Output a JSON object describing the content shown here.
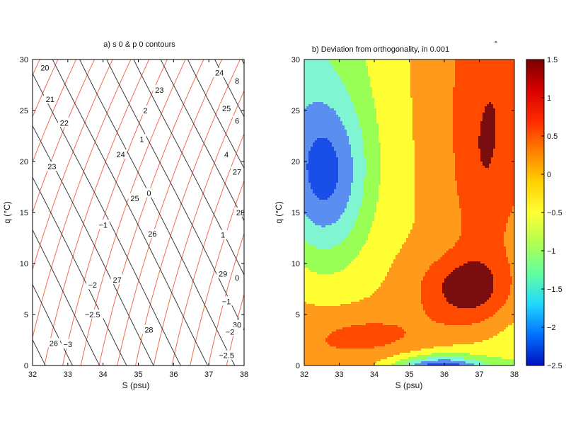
{
  "chart_data": [
    {
      "type": "line",
      "title": "a) s 0 & p 0 contours",
      "xlabel": "S (psu)",
      "ylabel": "q (°C)",
      "xlim": [
        32,
        38
      ],
      "ylim": [
        0,
        30
      ],
      "xticks": [
        "32",
        "33",
        "34",
        "35",
        "36",
        "37",
        "38"
      ],
      "yticks": [
        "0",
        "5",
        "10",
        "15",
        "20",
        "25",
        "30"
      ],
      "colors": {
        "sigma_contours": "#f26b50",
        "pi_contours": "#3b3b3b"
      },
      "sigma_contour_labels": [
        {
          "text": "20",
          "x": 32.35,
          "y": 29.2
        },
        {
          "text": "21",
          "x": 32.5,
          "y": 26.1
        },
        {
          "text": "22",
          "x": 32.9,
          "y": 23.8
        },
        {
          "text": "23",
          "x": 32.55,
          "y": 19.5
        },
        {
          "text": "23",
          "x": 35.6,
          "y": 27.0
        },
        {
          "text": "24",
          "x": 34.5,
          "y": 20.7
        },
        {
          "text": "24",
          "x": 37.3,
          "y": 28.7
        },
        {
          "text": "25",
          "x": 34.9,
          "y": 16.4
        },
        {
          "text": "25",
          "x": 37.5,
          "y": 25.2
        },
        {
          "text": "26",
          "x": 35.4,
          "y": 12.9
        },
        {
          "text": "27",
          "x": 34.4,
          "y": 8.4
        },
        {
          "text": "27",
          "x": 37.8,
          "y": 19.0
        },
        {
          "text": "28",
          "x": 35.3,
          "y": 3.5
        },
        {
          "text": "28",
          "x": 37.9,
          "y": 15.0
        },
        {
          "text": "29",
          "x": 37.4,
          "y": 9.0
        },
        {
          "text": "30",
          "x": 37.8,
          "y": 4.0
        },
        {
          "text": "26",
          "x": 32.6,
          "y": 2.2
        }
      ],
      "pi_contour_labels": [
        {
          "text": "8",
          "x": 37.8,
          "y": 27.9
        },
        {
          "text": "6",
          "x": 37.8,
          "y": 24.0
        },
        {
          "text": "4",
          "x": 37.5,
          "y": 20.7
        },
        {
          "text": "2",
          "x": 35.2,
          "y": 25.0
        },
        {
          "text": "1",
          "x": 35.1,
          "y": 22.2
        },
        {
          "text": "0",
          "x": 35.3,
          "y": 16.9
        },
        {
          "text": "1",
          "x": 37.4,
          "y": 12.8
        },
        {
          "text": "0",
          "x": 37.8,
          "y": 8.6
        },
        {
          "text": "−1",
          "x": 34.0,
          "y": 13.8
        },
        {
          "text": "−1",
          "x": 37.5,
          "y": 6.3
        },
        {
          "text": "−2",
          "x": 33.7,
          "y": 7.9
        },
        {
          "text": "−2",
          "x": 37.6,
          "y": 3.3
        },
        {
          "text": "−2.5",
          "x": 33.7,
          "y": 5.0
        },
        {
          "text": "−2.5",
          "x": 37.5,
          "y": 1.0
        },
        {
          "text": "−3",
          "x": 33.0,
          "y": 2.1
        }
      ]
    },
    {
      "type": "heatmap",
      "title": "b) Deviation from orthogonality, in 0.001",
      "title_unit": "°",
      "xlabel": "S (psu)",
      "ylabel": "q (°C)",
      "xlim": [
        32,
        38
      ],
      "ylim": [
        0,
        30
      ],
      "xticks": [
        "32",
        "33",
        "34",
        "35",
        "36",
        "37",
        "38"
      ],
      "yticks": [
        "0",
        "5",
        "10",
        "15",
        "20",
        "25",
        "30"
      ],
      "colorbar": {
        "range": [
          -2.5,
          1.5
        ],
        "ticks": [
          "1.5",
          "1",
          "0.5",
          "0",
          "−0.5",
          "−1",
          "−1.5",
          "−2",
          "−2.5"
        ],
        "tick_values": [
          1.5,
          1,
          0.5,
          0,
          -0.5,
          -1,
          -1.5,
          -2,
          -2.5
        ]
      },
      "contour_levels": [
        -2.25,
        -1.75,
        -1.25,
        -0.75,
        -0.25,
        0.25,
        0.75,
        1.25
      ],
      "fill_colors": {
        "lt_-2.25": "#1020c8",
        "-2.25_-1.75": "#1a4ee8",
        "-1.75_-1.25": "#5a8ef0",
        "-1.25_-0.75": "#7ff5d2",
        "-0.75_-0.25": "#9aff55",
        "-0.25_0.25": "#ffff33",
        "0.25_0.75": "#ff9a1a",
        "0.75_1.25": "#ff4a00",
        "gt_1.25": "#7a0e0e"
      },
      "colorbar_gradient": [
        "#7a0000",
        "#d70000",
        "#ff2a00",
        "#ff8000",
        "#ffd000",
        "#ffff33",
        "#b0ff50",
        "#60ffa0",
        "#20d8ff",
        "#0070ff",
        "#0010c0"
      ]
    }
  ]
}
